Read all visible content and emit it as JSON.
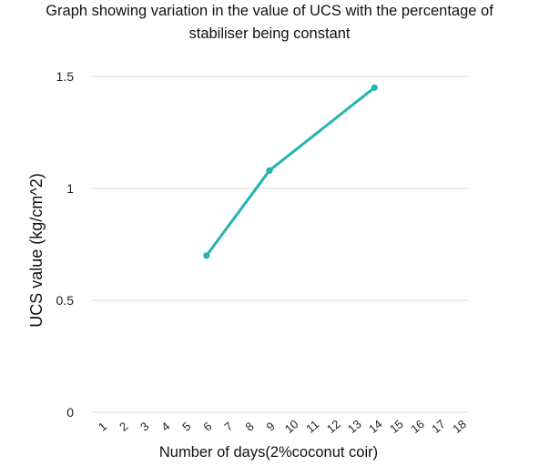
{
  "title_lines": [
    "Graph showing variation in the value of UCS with the percentage of",
    "stabiliser being constant"
  ],
  "chart_data": {
    "type": "line",
    "title": "Graph showing variation in the value of UCS with the percentage of stabiliser being constant",
    "xlabel": "Number of days(2%coconut coir)",
    "ylabel": "UCS value (kg/cm^2)",
    "categories": [
      "1",
      "2",
      "3",
      "4",
      "5",
      "6",
      "7",
      "8",
      "9",
      "10",
      "11",
      "12",
      "13",
      "14",
      "15",
      "16",
      "17",
      "18"
    ],
    "ylim": [
      0,
      1.5
    ],
    "yticks": [
      "0",
      "0.5",
      "1",
      "1.5"
    ],
    "grid": true,
    "series": [
      {
        "color": "#26b3b3",
        "points": [
          {
            "x": "6",
            "y": 0.7
          },
          {
            "x": "9",
            "y": 1.08
          },
          {
            "x": "14",
            "y": 1.45
          }
        ]
      }
    ]
  }
}
